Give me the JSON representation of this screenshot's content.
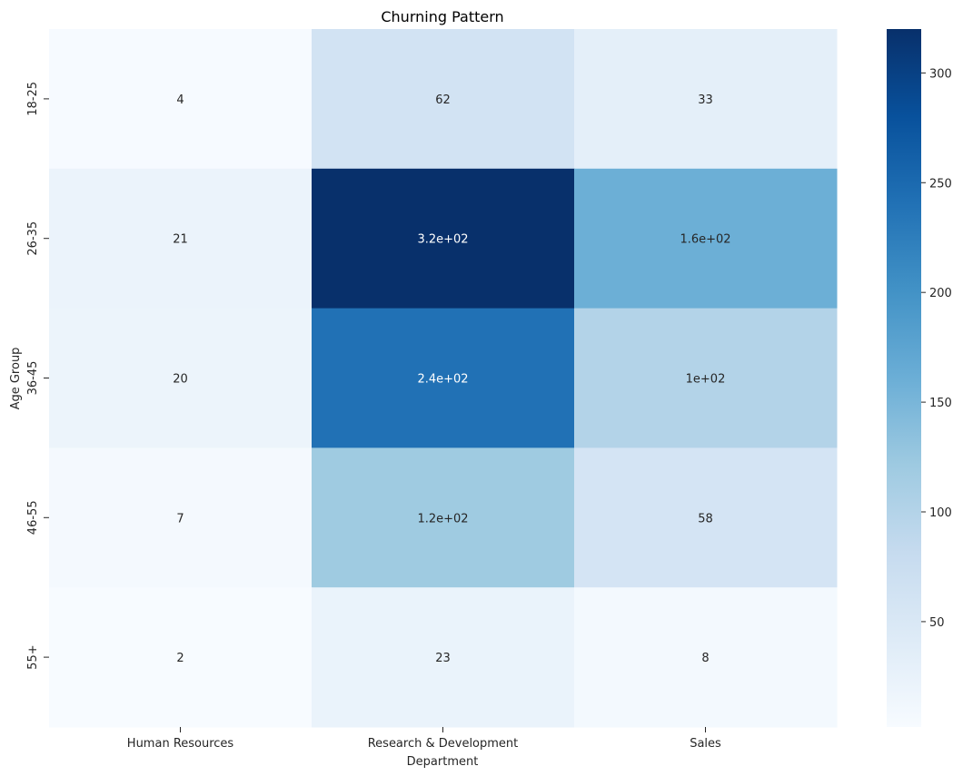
{
  "chart_data": {
    "type": "heatmap",
    "title": "Churning Pattern",
    "xlabel": "Department",
    "ylabel": "Age Group",
    "x_categories": [
      "Human Resources",
      "Research & Development",
      "Sales"
    ],
    "y_categories": [
      "18-25",
      "26-35",
      "36-45",
      "46-55",
      "55+"
    ],
    "values": [
      [
        4,
        62,
        33
      ],
      [
        21,
        320,
        160
      ],
      [
        20,
        240,
        100
      ],
      [
        7,
        120,
        58
      ],
      [
        2,
        23,
        8
      ]
    ],
    "annotations": [
      [
        "4",
        "62",
        "33"
      ],
      [
        "21",
        "3.2e+02",
        "1.6e+02"
      ],
      [
        "20",
        "2.4e+02",
        "1e+02"
      ],
      [
        "7",
        "1.2e+02",
        "58"
      ],
      [
        "2",
        "23",
        "8"
      ]
    ],
    "colormap": "Blues",
    "color_range": [
      2,
      320
    ],
    "colorbar_ticks": [
      50,
      100,
      150,
      200,
      250,
      300
    ],
    "colorbar_tick_labels": [
      "50",
      "100",
      "150",
      "200",
      "250",
      "300"
    ],
    "colors": {
      "low": "#f7fbff",
      "high": "#08306b",
      "text_dark": "#262626",
      "text_light": "#ffffff"
    }
  }
}
